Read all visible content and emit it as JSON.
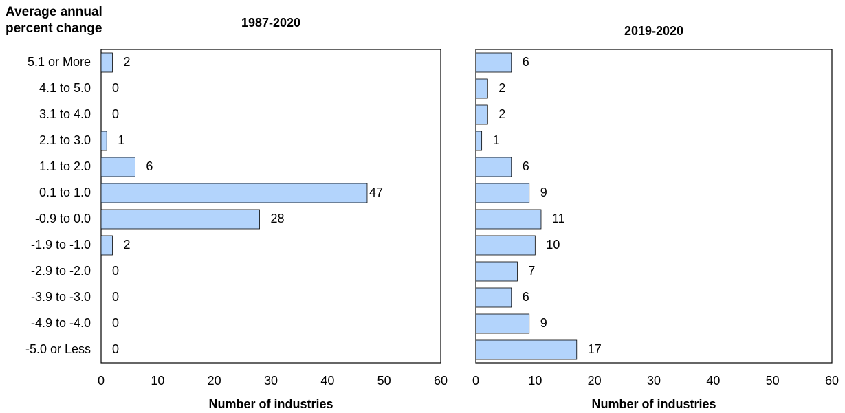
{
  "chart_data": [
    {
      "type": "hbar",
      "title": "1987-2020",
      "ylabel": "Average annual percent change",
      "xlabel": "Number of industries",
      "categories": [
        "5.1 or More",
        "4.1 to 5.0",
        "3.1 to 4.0",
        "2.1 to 3.0",
        "1.1 to 2.0",
        "0.1 to 1.0",
        "-0.9 to 0.0",
        "-1.9 to -1.0",
        "-2.9 to -2.0",
        "-3.9 to -3.0",
        "-4.9 to -4.0",
        "-5.0 or Less"
      ],
      "values": [
        2,
        0,
        0,
        1,
        6,
        47,
        28,
        2,
        0,
        0,
        0,
        0
      ],
      "color": "#b3d4fc",
      "xlim": [
        0,
        60
      ],
      "xticks": [
        0,
        10,
        20,
        30,
        40,
        50,
        60
      ]
    },
    {
      "type": "hbar",
      "title": "2019-2020",
      "xlabel": "Number of industries",
      "values": [
        6,
        2,
        2,
        1,
        6,
        9,
        11,
        10,
        7,
        6,
        9,
        17
      ],
      "color": "#b3d4fc",
      "xlim": [
        0,
        60
      ],
      "xticks": [
        0,
        10,
        20,
        30,
        40,
        50,
        60
      ]
    }
  ]
}
